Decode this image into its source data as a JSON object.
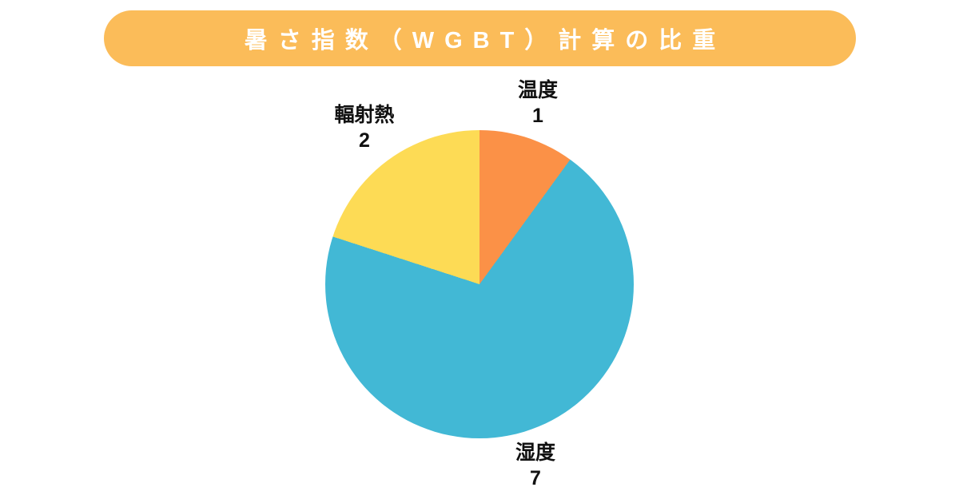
{
  "title": {
    "text": "暑さ指数（WGBT）計算の比重"
  },
  "colors": {
    "background": "#FFFFFF",
    "banner": "#FBBC59",
    "title_text": "#FFFFFF",
    "label_text": "#111111"
  },
  "chart_data": {
    "type": "pie",
    "title": "暑さ指数（WGBT）計算の比重",
    "start_angle_deg": 0,
    "direction": "clockwise",
    "total": 10,
    "slices": [
      {
        "label": "温度",
        "value": 1,
        "color": "#FB9147",
        "angle_deg": 36
      },
      {
        "label": "湿度",
        "value": 7,
        "color": "#42B8D5",
        "angle_deg": 252
      },
      {
        "label": "輻射熱",
        "value": 2,
        "color": "#FDDB55",
        "angle_deg": 72
      }
    ],
    "legend_position": "none",
    "labels_placement": "outside"
  }
}
